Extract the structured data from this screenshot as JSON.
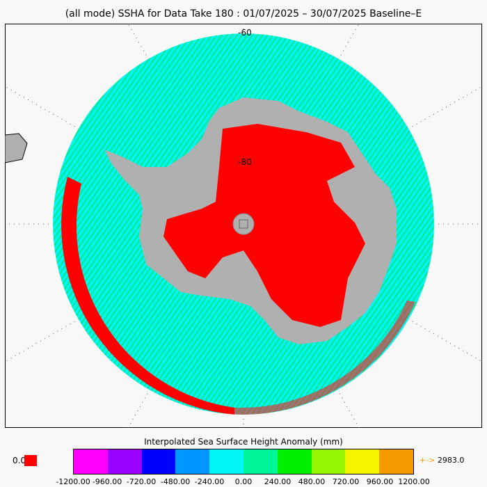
{
  "title": "(all mode) SSHA for Data Take 180 : 01/07/2025 – 30/07/2025 Baseline–E",
  "map": {
    "lat_labels": [
      "-60",
      "-80"
    ],
    "colors": {
      "ocean": "#00f5f5",
      "land": "#b0b0b0",
      "ice_red": "#ff0000",
      "subantarctic": "#00f096"
    }
  },
  "colorbar": {
    "title": "Interpolated Sea Surface Height Anomaly (mm)",
    "colors": [
      "#ff00ff",
      "#9a00ff",
      "#0000ff",
      "#0096ff",
      "#00f5f5",
      "#00f59a",
      "#00f000",
      "#96f500",
      "#f5f500",
      "#f59a00"
    ],
    "ticks": [
      "-1200.00",
      "-960.00",
      "-720.00",
      "-480.00",
      "-240.00",
      "0.00",
      "240.00",
      "480.00",
      "720.00",
      "960.00",
      "1200.00"
    ],
    "underflow_label": "0.0",
    "overflow_arrow": "+->",
    "overflow_value": "2983.0"
  }
}
